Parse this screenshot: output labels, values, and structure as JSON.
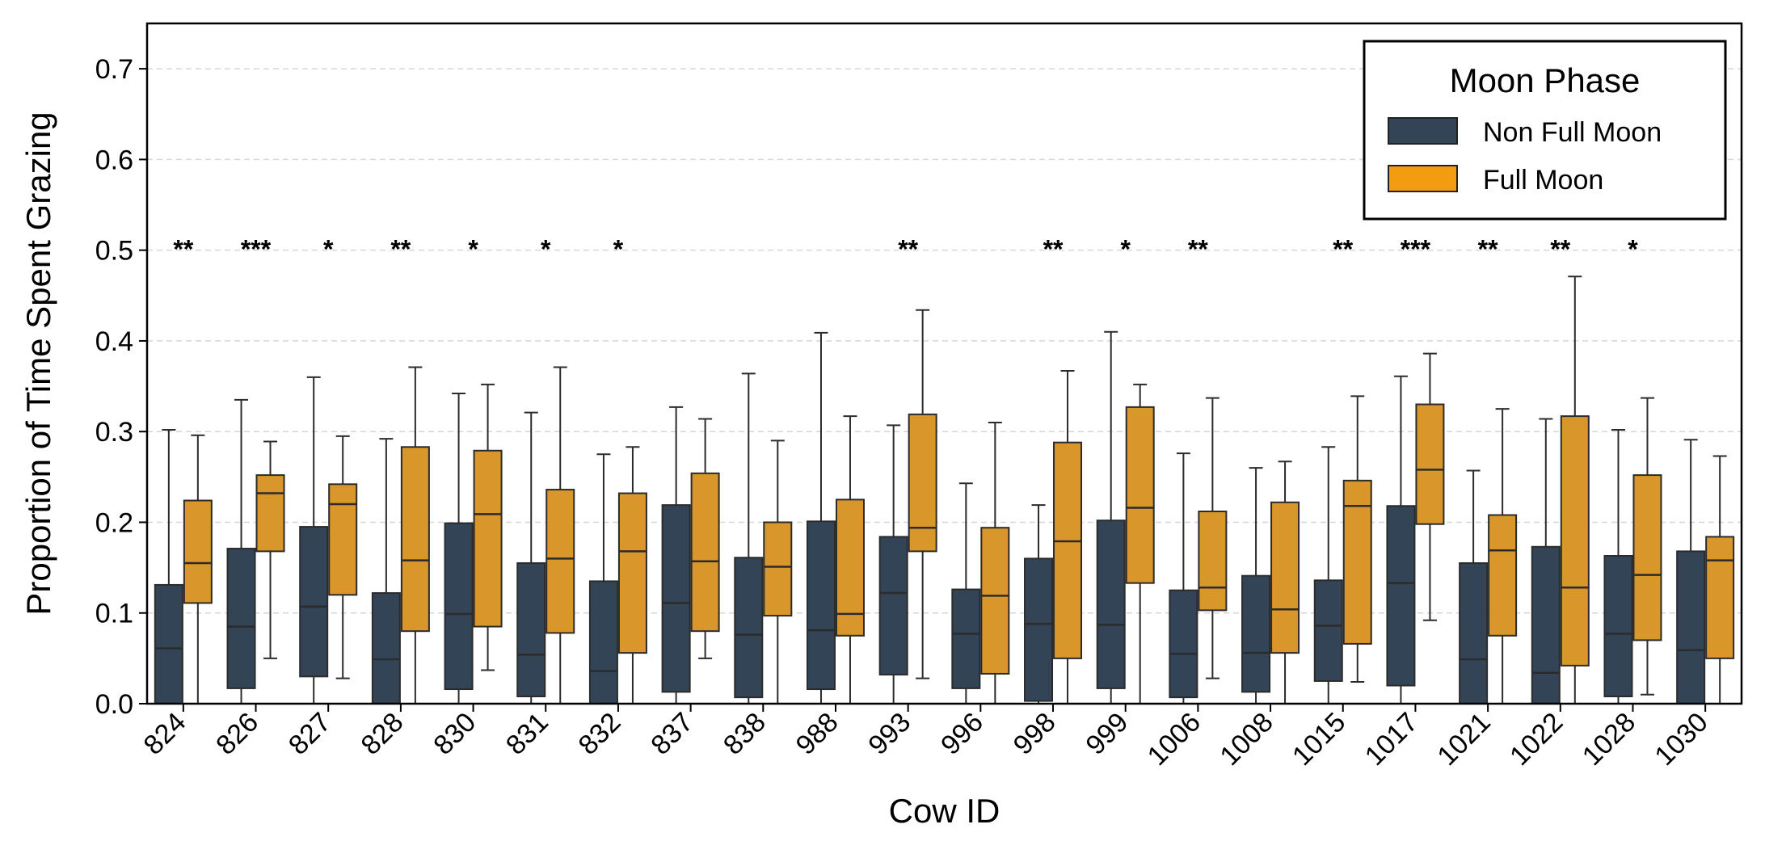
{
  "chart_data": {
    "type": "box",
    "xlabel": "Cow ID",
    "ylabel": "Proportion of Time Spent Grazing",
    "ylim": [
      0,
      0.75
    ],
    "yticks": [
      "0.0",
      "0.1",
      "0.2",
      "0.3",
      "0.4",
      "0.5",
      "0.6",
      "0.7"
    ],
    "grid": "horizontal dashed",
    "legend": {
      "title": "Moon Phase",
      "placement": "top-right",
      "entries": [
        "Non Full Moon",
        "Full Moon"
      ]
    },
    "categories": [
      "824",
      "826",
      "827",
      "828",
      "830",
      "831",
      "832",
      "837",
      "838",
      "988",
      "993",
      "996",
      "998",
      "999",
      "1006",
      "1008",
      "1015",
      "1017",
      "1021",
      "1022",
      "1028",
      "1030"
    ],
    "significance": [
      "**",
      "***",
      "*",
      "**",
      "*",
      "*",
      "*",
      "",
      "",
      "",
      "**",
      "",
      "**",
      "*",
      "**",
      "",
      "**",
      "***",
      "**",
      "**",
      "*",
      ""
    ],
    "series": [
      {
        "name": "Non Full Moon",
        "color": "#344457",
        "boxes": [
          {
            "whislo": 0.0,
            "q1": 0.0,
            "med": 0.061,
            "q3": 0.131,
            "whishi": 0.302
          },
          {
            "whislo": 0.0,
            "q1": 0.017,
            "med": 0.085,
            "q3": 0.171,
            "whishi": 0.335
          },
          {
            "whislo": 0.0,
            "q1": 0.03,
            "med": 0.107,
            "q3": 0.195,
            "whishi": 0.36
          },
          {
            "whislo": 0.0,
            "q1": 0.0,
            "med": 0.049,
            "q3": 0.122,
            "whishi": 0.292
          },
          {
            "whislo": 0.0,
            "q1": 0.016,
            "med": 0.099,
            "q3": 0.199,
            "whishi": 0.342
          },
          {
            "whislo": 0.0,
            "q1": 0.008,
            "med": 0.054,
            "q3": 0.155,
            "whishi": 0.321
          },
          {
            "whislo": 0.0,
            "q1": 0.0,
            "med": 0.036,
            "q3": 0.135,
            "whishi": 0.275
          },
          {
            "whislo": 0.0,
            "q1": 0.013,
            "med": 0.111,
            "q3": 0.219,
            "whishi": 0.327
          },
          {
            "whislo": 0.0,
            "q1": 0.007,
            "med": 0.076,
            "q3": 0.161,
            "whishi": 0.364
          },
          {
            "whislo": 0.0,
            "q1": 0.016,
            "med": 0.081,
            "q3": 0.201,
            "whishi": 0.409
          },
          {
            "whislo": 0.0,
            "q1": 0.032,
            "med": 0.122,
            "q3": 0.184,
            "whishi": 0.307
          },
          {
            "whislo": 0.0,
            "q1": 0.017,
            "med": 0.077,
            "q3": 0.126,
            "whishi": 0.243
          },
          {
            "whislo": 0.0,
            "q1": 0.003,
            "med": 0.088,
            "q3": 0.16,
            "whishi": 0.219
          },
          {
            "whislo": 0.0,
            "q1": 0.017,
            "med": 0.087,
            "q3": 0.202,
            "whishi": 0.41
          },
          {
            "whislo": 0.0,
            "q1": 0.007,
            "med": 0.055,
            "q3": 0.125,
            "whishi": 0.276
          },
          {
            "whislo": 0.0,
            "q1": 0.013,
            "med": 0.056,
            "q3": 0.141,
            "whishi": 0.26
          },
          {
            "whislo": 0.0,
            "q1": 0.025,
            "med": 0.086,
            "q3": 0.136,
            "whishi": 0.283
          },
          {
            "whislo": 0.0,
            "q1": 0.02,
            "med": 0.133,
            "q3": 0.218,
            "whishi": 0.361
          },
          {
            "whislo": 0.0,
            "q1": 0.0,
            "med": 0.049,
            "q3": 0.155,
            "whishi": 0.257
          },
          {
            "whislo": 0.0,
            "q1": 0.0,
            "med": 0.034,
            "q3": 0.173,
            "whishi": 0.314
          },
          {
            "whislo": 0.0,
            "q1": 0.008,
            "med": 0.077,
            "q3": 0.163,
            "whishi": 0.302
          },
          {
            "whislo": 0.0,
            "q1": 0.0,
            "med": 0.059,
            "q3": 0.168,
            "whishi": 0.291
          }
        ]
      },
      {
        "name": "Full Moon",
        "color": "#d9962b",
        "legend_color": "#f39c12",
        "boxes": [
          {
            "whislo": 0.0,
            "q1": 0.111,
            "med": 0.155,
            "q3": 0.224,
            "whishi": 0.296
          },
          {
            "whislo": 0.05,
            "q1": 0.168,
            "med": 0.232,
            "q3": 0.252,
            "whishi": 0.289
          },
          {
            "whislo": 0.028,
            "q1": 0.12,
            "med": 0.22,
            "q3": 0.242,
            "whishi": 0.295
          },
          {
            "whislo": 0.0,
            "q1": 0.08,
            "med": 0.158,
            "q3": 0.283,
            "whishi": 0.371
          },
          {
            "whislo": 0.037,
            "q1": 0.085,
            "med": 0.209,
            "q3": 0.279,
            "whishi": 0.352
          },
          {
            "whislo": 0.0,
            "q1": 0.078,
            "med": 0.16,
            "q3": 0.236,
            "whishi": 0.371
          },
          {
            "whislo": 0.0,
            "q1": 0.056,
            "med": 0.168,
            "q3": 0.232,
            "whishi": 0.283
          },
          {
            "whislo": 0.05,
            "q1": 0.08,
            "med": 0.157,
            "q3": 0.254,
            "whishi": 0.314
          },
          {
            "whislo": 0.0,
            "q1": 0.097,
            "med": 0.151,
            "q3": 0.2,
            "whishi": 0.29
          },
          {
            "whislo": 0.0,
            "q1": 0.075,
            "med": 0.099,
            "q3": 0.225,
            "whishi": 0.317
          },
          {
            "whislo": 0.028,
            "q1": 0.168,
            "med": 0.194,
            "q3": 0.319,
            "whishi": 0.434
          },
          {
            "whislo": 0.0,
            "q1": 0.033,
            "med": 0.119,
            "q3": 0.194,
            "whishi": 0.31
          },
          {
            "whislo": 0.0,
            "q1": 0.05,
            "med": 0.179,
            "q3": 0.288,
            "whishi": 0.367
          },
          {
            "whislo": 0.0,
            "q1": 0.133,
            "med": 0.216,
            "q3": 0.327,
            "whishi": 0.352
          },
          {
            "whislo": 0.028,
            "q1": 0.103,
            "med": 0.128,
            "q3": 0.212,
            "whishi": 0.337
          },
          {
            "whislo": 0.0,
            "q1": 0.056,
            "med": 0.104,
            "q3": 0.222,
            "whishi": 0.267
          },
          {
            "whislo": 0.024,
            "q1": 0.066,
            "med": 0.218,
            "q3": 0.246,
            "whishi": 0.339
          },
          {
            "whislo": 0.092,
            "q1": 0.198,
            "med": 0.258,
            "q3": 0.33,
            "whishi": 0.386
          },
          {
            "whislo": 0.0,
            "q1": 0.075,
            "med": 0.169,
            "q3": 0.208,
            "whishi": 0.325
          },
          {
            "whislo": 0.0,
            "q1": 0.042,
            "med": 0.128,
            "q3": 0.317,
            "whishi": 0.471
          },
          {
            "whislo": 0.01,
            "q1": 0.07,
            "med": 0.142,
            "q3": 0.252,
            "whishi": 0.337
          },
          {
            "whislo": 0.0,
            "q1": 0.05,
            "med": 0.158,
            "q3": 0.184,
            "whishi": 0.273
          }
        ]
      }
    ]
  }
}
